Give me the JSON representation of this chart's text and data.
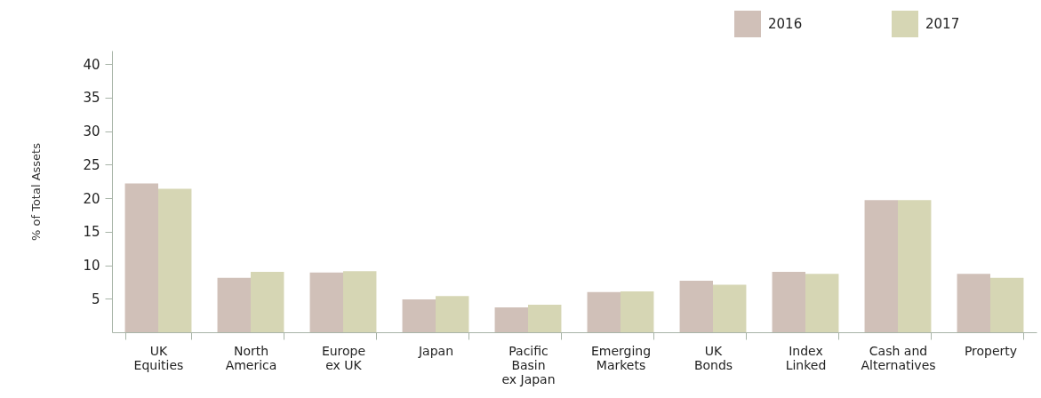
{
  "chart_data": {
    "type": "bar",
    "ylabel": "% of Total Assets",
    "categories": [
      "UK\nEquities",
      "North\nAmerica",
      "Europe\nex UK",
      "Japan",
      "Pacific\nBasin\nex Japan",
      "Emerging\nMarkets",
      "UK\nBonds",
      "Index\nLinked",
      "Cash and\nAlternatives",
      "Property"
    ],
    "series": [
      {
        "name": "2016",
        "color": "#d0c0b8",
        "values": [
          22.2,
          8.1,
          8.9,
          4.9,
          3.7,
          6.0,
          7.7,
          9.0,
          19.7,
          8.7
        ]
      },
      {
        "name": "2017",
        "color": "#d6d6b4",
        "values": [
          21.4,
          9.0,
          9.1,
          5.4,
          4.1,
          6.1,
          7.1,
          8.7,
          19.7,
          8.1
        ]
      }
    ],
    "ylim": [
      0,
      42
    ],
    "yticks": [
      5,
      10,
      15,
      20,
      25,
      30,
      35,
      40
    ],
    "grid": false,
    "legend": "top right"
  }
}
